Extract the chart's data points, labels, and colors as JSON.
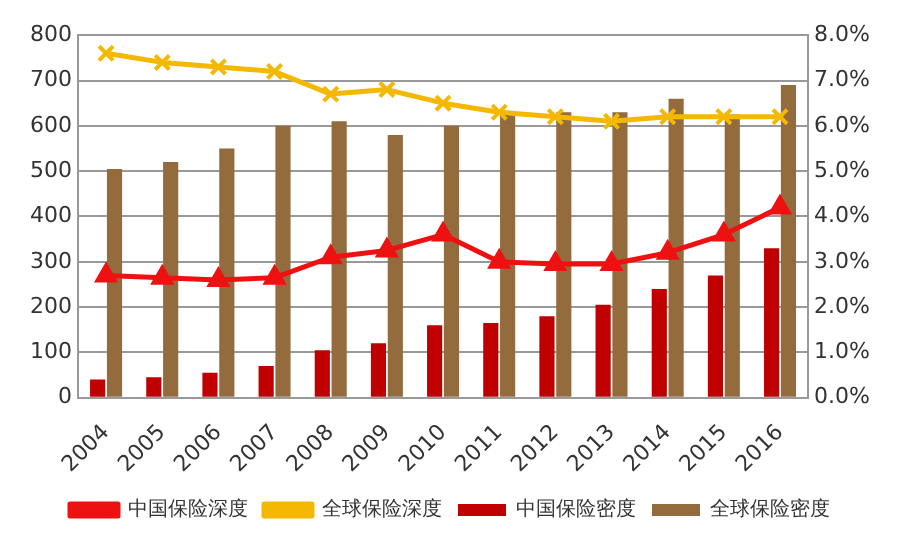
{
  "chart_data": {
    "type": "bar",
    "categories": [
      "2004",
      "2005",
      "2006",
      "2007",
      "2008",
      "2009",
      "2010",
      "2011",
      "2012",
      "2013",
      "2014",
      "2015",
      "2016"
    ],
    "series": [
      {
        "name": "中国保险密度",
        "color": "#c00000",
        "values": [
          40,
          45,
          55,
          70,
          105,
          120,
          160,
          165,
          180,
          205,
          240,
          270,
          330
        ]
      },
      {
        "name": "全球保险密度",
        "color": "#946b3d",
        "values": [
          505,
          520,
          550,
          600,
          610,
          580,
          600,
          625,
          630,
          630,
          660,
          625,
          690
        ]
      },
      {
        "name": "中国保险深度",
        "type": "line",
        "axis": "y2",
        "marker": "triangle",
        "color": "#ee1111",
        "values": [
          2.7,
          2.65,
          2.6,
          2.65,
          3.1,
          3.25,
          3.6,
          3.0,
          2.95,
          2.95,
          3.2,
          3.6,
          4.2
        ]
      },
      {
        "name": "全球保险深度",
        "type": "line",
        "axis": "y2",
        "marker": "cross",
        "color": "#f5b800",
        "values": [
          7.6,
          7.4,
          7.3,
          7.2,
          6.7,
          6.8,
          6.5,
          6.3,
          6.2,
          6.1,
          6.2,
          6.2,
          6.2
        ]
      }
    ],
    "ylim": [
      0,
      800
    ],
    "yticks": [
      0,
      100,
      200,
      300,
      400,
      500,
      600,
      700,
      800
    ],
    "y2lim": [
      0,
      8
    ],
    "y2ticks": [
      {
        "value": 0,
        "label": "0.0%"
      },
      {
        "value": 1,
        "label": "1.0%"
      },
      {
        "value": 2,
        "label": "2.0%"
      },
      {
        "value": 3,
        "label": "3.0%"
      },
      {
        "value": 4,
        "label": "4.0%"
      },
      {
        "value": 5,
        "label": "5.0%"
      },
      {
        "value": 6,
        "label": "6.0%"
      },
      {
        "value": 7,
        "label": "7.0%"
      },
      {
        "value": 8,
        "label": "8.0%"
      }
    ],
    "grid": "y",
    "legend": "bottom"
  }
}
